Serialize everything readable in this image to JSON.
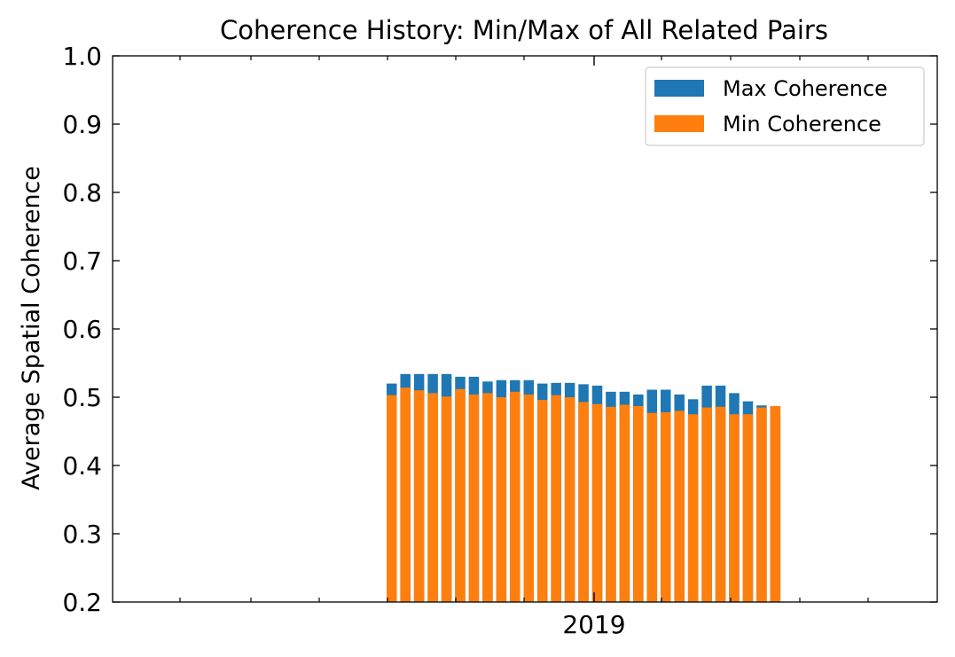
{
  "chart_data": {
    "type": "bar",
    "stacked_overlay": true,
    "title": "Coherence History: Min/Max of All Related Pairs",
    "xlabel": "",
    "ylabel": "Average Spatial Coherence",
    "ylim": [
      0.2,
      1.0
    ],
    "y_ticks": [
      "0.2",
      "0.3",
      "0.4",
      "0.5",
      "0.6",
      "0.7",
      "0.8",
      "0.9",
      "1.0"
    ],
    "x_tick_labels": [
      "2019"
    ],
    "legend_placement": "upper-right",
    "grid": false,
    "series": [
      {
        "name": "Max Coherence",
        "color": "#1f77b4",
        "values": [
          0.52,
          0.534,
          0.534,
          0.534,
          0.534,
          0.53,
          0.53,
          0.523,
          0.525,
          0.525,
          0.525,
          0.52,
          0.521,
          0.521,
          0.519,
          0.517,
          0.508,
          0.508,
          0.504,
          0.511,
          0.511,
          0.504,
          0.497,
          0.517,
          0.517,
          0.506,
          0.494,
          0.488,
          0.487
        ]
      },
      {
        "name": "Min Coherence",
        "color": "#ff7f0e",
        "values": [
          0.503,
          0.514,
          0.51,
          0.506,
          0.501,
          0.512,
          0.504,
          0.506,
          0.5,
          0.508,
          0.504,
          0.496,
          0.503,
          0.5,
          0.493,
          0.49,
          0.486,
          0.489,
          0.487,
          0.477,
          0.478,
          0.48,
          0.475,
          0.485,
          0.486,
          0.475,
          0.475,
          0.485,
          0.487
        ]
      }
    ]
  }
}
